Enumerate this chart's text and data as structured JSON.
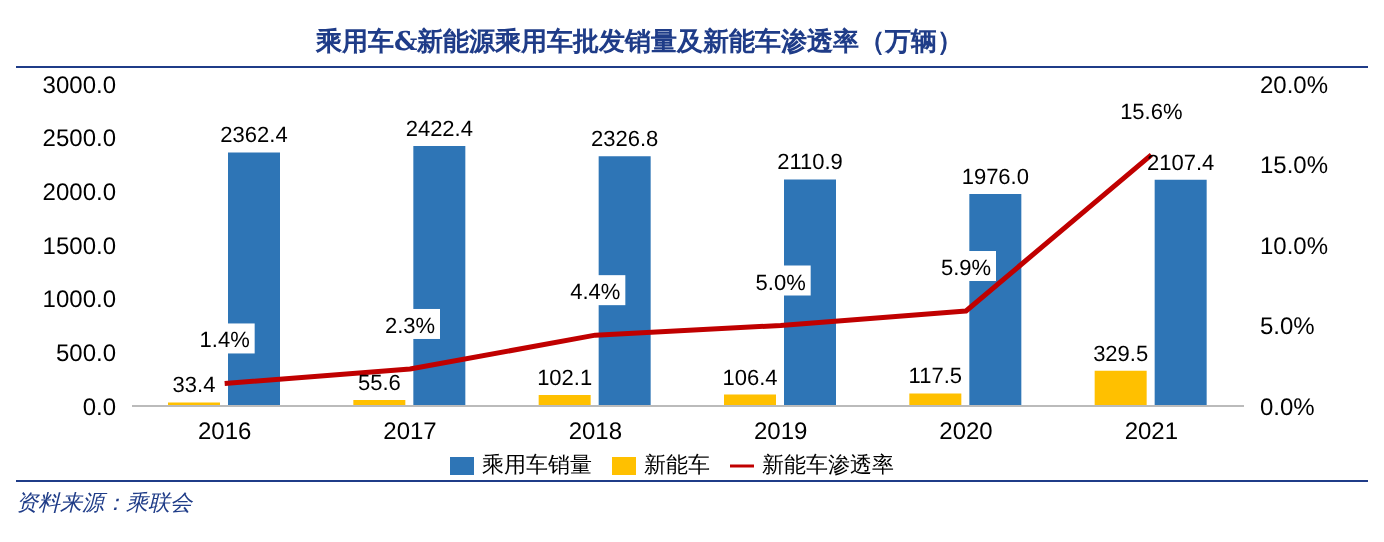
{
  "chart_data": {
    "type": "bar",
    "title": "乘用车&新能源乘用车批发销量及新能车渗透率（万辆）",
    "categories": [
      "2016",
      "2017",
      "2018",
      "2019",
      "2020",
      "2021"
    ],
    "series": [
      {
        "name": "新能车",
        "color": "#ffc000",
        "values": [
          33.4,
          55.6,
          102.1,
          106.4,
          117.5,
          329.5
        ],
        "value_labels": [
          "33.4",
          "55.6",
          "102.1",
          "106.4",
          "117.5",
          "329.5"
        ]
      },
      {
        "name": "乘用车销量",
        "color": "#2e75b6",
        "values": [
          2362.4,
          2422.4,
          2326.8,
          2110.9,
          1976,
          2107.4
        ],
        "value_labels": [
          "2362.4",
          "2422.4",
          "2326.8",
          "2110.9",
          "1976.0",
          "2107.4"
        ]
      },
      {
        "name": "新能车渗透率",
        "type": "line",
        "axis": "y2",
        "color": "#c00000",
        "values": [
          1.4,
          2.3,
          4.4,
          5.0,
          5.9,
          15.6
        ],
        "value_labels": [
          "1.4%",
          "2.3%",
          "4.4%",
          "5.0%",
          "5.9%",
          "15.6%"
        ]
      }
    ],
    "ylim": [
      0,
      3000
    ],
    "yticks": [
      {
        "value": 0,
        "label": "0.0"
      },
      {
        "value": 500,
        "label": "500.0"
      },
      {
        "value": 1000,
        "label": "1000.0"
      },
      {
        "value": 1500,
        "label": "1500.0"
      },
      {
        "value": 2000,
        "label": "2000.0"
      },
      {
        "value": 2500,
        "label": "2500.0"
      },
      {
        "value": 3000,
        "label": "3000.0"
      }
    ],
    "y2lim": [
      0,
      20
    ],
    "y2ticks": [
      {
        "value": 0,
        "label": "0.0%"
      },
      {
        "value": 5,
        "label": "5.0%"
      },
      {
        "value": 10,
        "label": "10.0%"
      },
      {
        "value": 15,
        "label": "15.0%"
      },
      {
        "value": 20,
        "label": "20.0%"
      }
    ],
    "data_labels": true,
    "legend": "bottom",
    "grid": false,
    "marker": "none",
    "line_style": "solid",
    "annotations": [
      "资料来源：乘联会"
    ]
  }
}
